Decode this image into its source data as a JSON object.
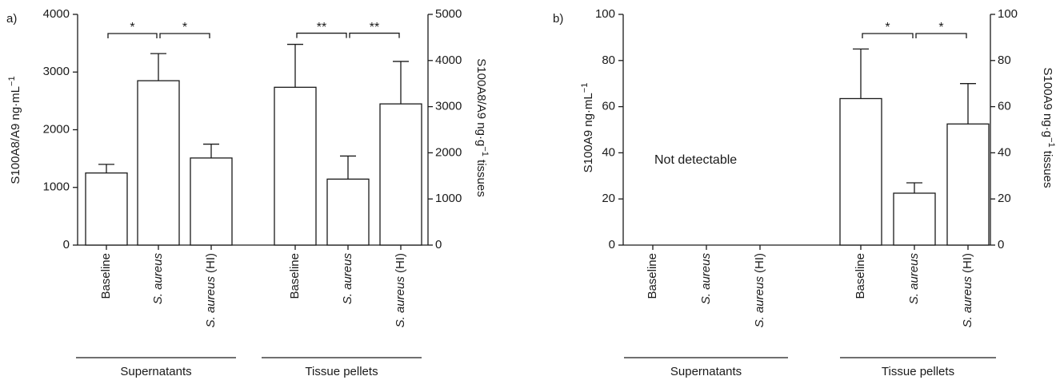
{
  "chart_data": [
    {
      "panel_label": "a)",
      "type": "bar",
      "left_axis": {
        "label": "S100A8/A9 ng·mL⁻¹",
        "ylim": [
          0,
          4000
        ],
        "ticks": [
          "0",
          "1000",
          "2000",
          "3000",
          "4000"
        ]
      },
      "right_axis": {
        "label": "S100A8/A9 ng·g⁻¹ tissues",
        "ylim": [
          0,
          5000
        ],
        "ticks": [
          "0",
          "1000",
          "2000",
          "3000",
          "4000",
          "5000"
        ]
      },
      "groups": [
        {
          "name": "Supernatants",
          "axis": "left",
          "categories": [
            "Baseline",
            "S. aureus",
            "S. aureus (HI)"
          ],
          "values": [
            1250,
            2850,
            1510
          ],
          "error_upper": [
            1400,
            3320,
            1750
          ],
          "significance": [
            {
              "from": 0,
              "to": 1,
              "label": "*"
            },
            {
              "from": 1,
              "to": 2,
              "label": "*"
            }
          ]
        },
        {
          "name": "Tissue pellets",
          "axis": "right",
          "categories": [
            "Baseline",
            "S. aureus",
            "S. aureus (HI)"
          ],
          "values": [
            3420,
            1430,
            3060
          ],
          "error_upper": [
            4350,
            1930,
            3980
          ],
          "significance": [
            {
              "from": 0,
              "to": 1,
              "label": "**"
            },
            {
              "from": 1,
              "to": 2,
              "label": "**"
            }
          ]
        }
      ],
      "annotation": ""
    },
    {
      "panel_label": "b)",
      "type": "bar",
      "left_axis": {
        "label": "S100A9 ng·mL⁻¹",
        "ylim": [
          0,
          100
        ],
        "ticks": [
          "0",
          "20",
          "40",
          "60",
          "80",
          "100"
        ]
      },
      "right_axis": {
        "label": "S100A9 ng·g⁻¹ tissues",
        "ylim": [
          0,
          100
        ],
        "ticks": [
          "0",
          "20",
          "40",
          "60",
          "80",
          "100"
        ]
      },
      "groups": [
        {
          "name": "Supernatants",
          "axis": "left",
          "categories": [
            "Baseline",
            "S. aureus",
            "S. aureus (HI)"
          ],
          "values": [],
          "error_upper": [],
          "significance": []
        },
        {
          "name": "Tissue pellets",
          "axis": "right",
          "categories": [
            "Baseline",
            "S. aureus",
            "S. aureus (HI)"
          ],
          "values": [
            63.5,
            22.5,
            52.5
          ],
          "error_upper": [
            85,
            27,
            70
          ],
          "significance": [
            {
              "from": 0,
              "to": 1,
              "label": "*"
            },
            {
              "from": 1,
              "to": 2,
              "label": "*"
            }
          ]
        }
      ],
      "annotation": "Not detectable"
    }
  ]
}
